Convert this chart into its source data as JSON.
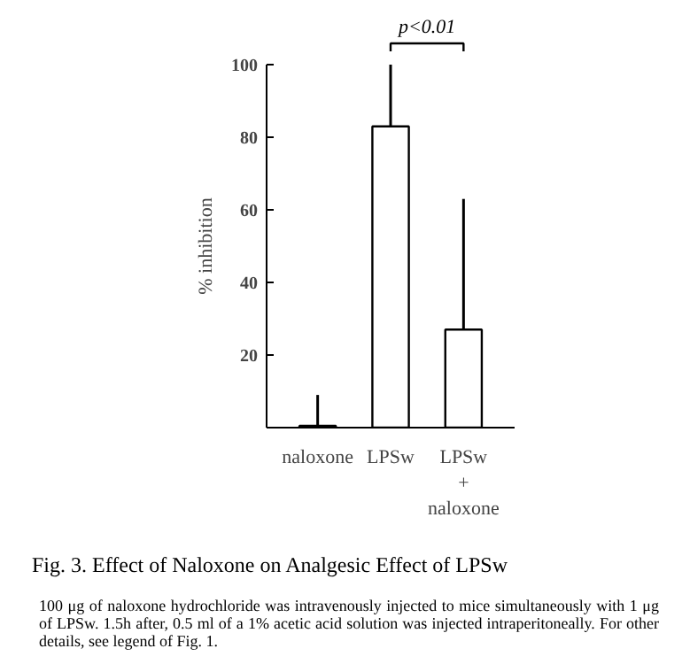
{
  "chart_data": {
    "type": "bar",
    "title": "Fig. 3.   Effect of Naloxone on Analgesic Effect of LPSw",
    "ylabel": "% inhibition",
    "categories": [
      "naloxone",
      "LPSw",
      "LPSw\n+\nnaloxone"
    ],
    "values": [
      0.5,
      83,
      27
    ],
    "errors": [
      [
        0.5,
        9
      ],
      [
        83,
        100
      ],
      [
        27,
        63
      ]
    ],
    "color": "#ffffff",
    "ylim": [
      0,
      100
    ],
    "yticks": [
      {
        "value": 0,
        "label": null
      },
      20,
      40,
      60,
      80,
      100
    ],
    "grid": false,
    "annotations": [
      "p<0.01",
      "100 μg of naloxone hydrochloride was intravenously injected to mice simultaneously with 1 μg of LPSw. 1.5h after, 0.5 ml of a 1% acetic acid solution was injected intraperitoneally. For other details, see legend of Fig. 1."
    ]
  }
}
